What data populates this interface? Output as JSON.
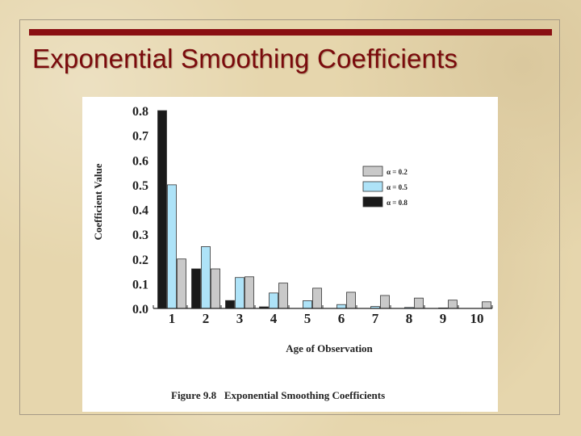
{
  "slide": {
    "title": "Exponential Smoothing Coefficients"
  },
  "chart_data": {
    "type": "bar",
    "caption": "Figure 9.8   Exponential Smoothing Coefficients",
    "xlabel": "Age of Observation",
    "ylabel": "Coefficient Value",
    "categories": [
      "1",
      "2",
      "3",
      "4",
      "5",
      "6",
      "7",
      "8",
      "9",
      "10"
    ],
    "yticks": [
      "0.0",
      "0.1",
      "0.2",
      "0.3",
      "0.4",
      "0.5",
      "0.6",
      "0.7",
      "0.8"
    ],
    "ylim": [
      0,
      0.8
    ],
    "legend_position": "top-right",
    "series": [
      {
        "name": "α = 0.8",
        "color": "#1a1a1a",
        "values": [
          0.8,
          0.16,
          0.032,
          0.0064,
          0.0013,
          0.0003,
          0.0001,
          0.0,
          0.0,
          0.0
        ]
      },
      {
        "name": "α = 0.5",
        "color": "#aee3f8",
        "values": [
          0.5,
          0.25,
          0.125,
          0.0625,
          0.0313,
          0.0156,
          0.0078,
          0.0039,
          0.002,
          0.001
        ]
      },
      {
        "name": "α = 0.2",
        "color": "#c9c9c9",
        "values": [
          0.2,
          0.16,
          0.128,
          0.1024,
          0.0819,
          0.0655,
          0.0524,
          0.0419,
          0.0336,
          0.0268
        ]
      }
    ],
    "legend_order": [
      2,
      1,
      0
    ]
  }
}
